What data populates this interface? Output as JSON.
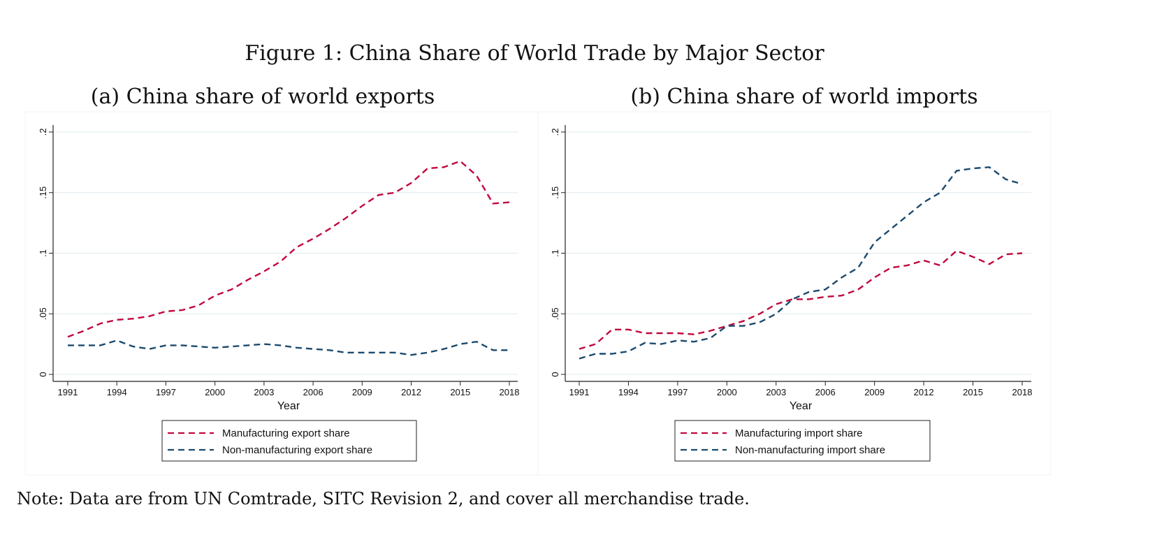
{
  "figure_title": "Figure 1: China Share of World Trade by Major Sector",
  "note": "Note: Data are from UN Comtrade, SITC Revision 2, and cover all merchandise trade.",
  "colors": {
    "manufacturing": "#c1083c",
    "non_manufacturing": "#1b4a6e",
    "grid": "#e4eef0"
  },
  "chart_data": [
    {
      "type": "line",
      "title": "(a) China share of world exports",
      "xlabel": "Year",
      "ylabel": "",
      "xlim": [
        1991,
        2018
      ],
      "ylim": [
        0,
        0.2
      ],
      "xticks": [
        1991,
        1994,
        1997,
        2000,
        2003,
        2006,
        2009,
        2012,
        2015,
        2018
      ],
      "yticks": [
        0,
        0.05,
        0.1,
        0.15,
        0.2
      ],
      "ytick_labels": [
        "0",
        ".05",
        ".1",
        ".15",
        ".2"
      ],
      "grid": true,
      "legend_position": "bottom",
      "x": [
        1991,
        1992,
        1993,
        1994,
        1995,
        1996,
        1997,
        1998,
        1999,
        2000,
        2001,
        2002,
        2003,
        2004,
        2005,
        2006,
        2007,
        2008,
        2009,
        2010,
        2011,
        2012,
        2013,
        2014,
        2015,
        2016,
        2017,
        2018
      ],
      "series": [
        {
          "name": "Manufacturing export share",
          "color_key": "manufacturing",
          "values": [
            0.031,
            0.036,
            0.042,
            0.045,
            0.046,
            0.048,
            0.052,
            0.053,
            0.057,
            0.065,
            0.07,
            0.078,
            0.085,
            0.093,
            0.105,
            0.112,
            0.12,
            0.129,
            0.139,
            0.148,
            0.15,
            0.158,
            0.17,
            0.171,
            0.176,
            0.164,
            0.141,
            0.142
          ]
        },
        {
          "name": "Non-manufacturing export share",
          "color_key": "non_manufacturing",
          "values": [
            0.024,
            0.024,
            0.024,
            0.028,
            0.023,
            0.021,
            0.024,
            0.024,
            0.023,
            0.022,
            0.023,
            0.024,
            0.025,
            0.024,
            0.022,
            0.021,
            0.02,
            0.018,
            0.018,
            0.018,
            0.018,
            0.016,
            0.018,
            0.021,
            0.025,
            0.027,
            0.02,
            0.02
          ]
        }
      ]
    },
    {
      "type": "line",
      "title": "(b) China share of world imports",
      "xlabel": "Year",
      "ylabel": "",
      "xlim": [
        1991,
        2018
      ],
      "ylim": [
        0,
        0.2
      ],
      "xticks": [
        1991,
        1994,
        1997,
        2000,
        2003,
        2006,
        2009,
        2012,
        2015,
        2018
      ],
      "yticks": [
        0,
        0.05,
        0.1,
        0.15,
        0.2
      ],
      "ytick_labels": [
        "0",
        ".05",
        ".1",
        ".15",
        ".2"
      ],
      "grid": true,
      "legend_position": "bottom",
      "x": [
        1991,
        1992,
        1993,
        1994,
        1995,
        1996,
        1997,
        1998,
        1999,
        2000,
        2001,
        2002,
        2003,
        2004,
        2005,
        2006,
        2007,
        2008,
        2009,
        2010,
        2011,
        2012,
        2013,
        2014,
        2015,
        2016,
        2017,
        2018
      ],
      "series": [
        {
          "name": "Manufacturing import share",
          "color_key": "manufacturing",
          "values": [
            0.021,
            0.025,
            0.037,
            0.037,
            0.034,
            0.034,
            0.034,
            0.033,
            0.036,
            0.04,
            0.044,
            0.05,
            0.058,
            0.062,
            0.062,
            0.064,
            0.065,
            0.07,
            0.08,
            0.088,
            0.09,
            0.094,
            0.09,
            0.102,
            0.097,
            0.091,
            0.099,
            0.1
          ]
        },
        {
          "name": "Non-manufacturing import share",
          "color_key": "non_manufacturing",
          "values": [
            0.013,
            0.017,
            0.017,
            0.019,
            0.026,
            0.025,
            0.028,
            0.027,
            0.03,
            0.04,
            0.04,
            0.043,
            0.05,
            0.062,
            0.068,
            0.07,
            0.08,
            0.088,
            0.109,
            0.12,
            0.131,
            0.142,
            0.15,
            0.168,
            0.17,
            0.171,
            0.161,
            0.157
          ]
        }
      ]
    }
  ]
}
